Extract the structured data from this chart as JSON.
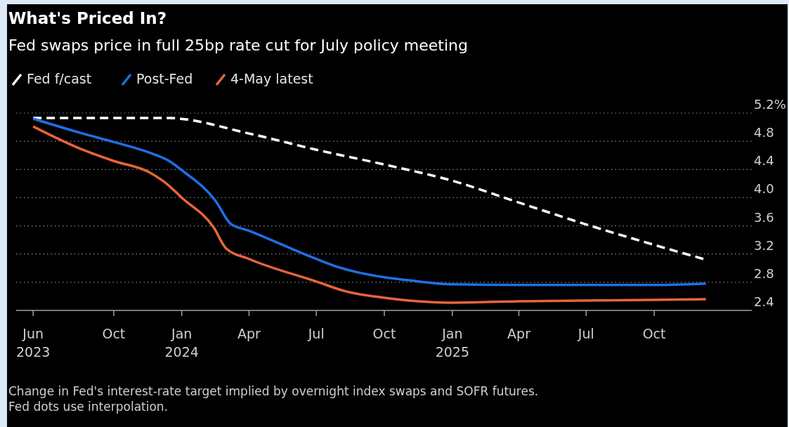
{
  "chart_data": {
    "type": "line",
    "title": "What's Priced In?",
    "subtitle": "Fed swaps price in full 25bp rate cut for July policy meeting",
    "annotations": [
      "Change in Fed's interest-rate target implied by overnight index swaps and SOFR futures. Fed dots use interpolation."
    ],
    "xlim": [
      "2023-05-22",
      "2026-02-10"
    ],
    "xticks": [
      {
        "value": "2023-06-14",
        "label": "Jun\n2023"
      },
      {
        "value": "2023-10-01",
        "label": "Oct"
      },
      {
        "value": "2024-01-01",
        "label": "Jan\n2024"
      },
      {
        "value": "2024-04-01",
        "label": "Apr"
      },
      {
        "value": "2024-07-01",
        "label": "Jul"
      },
      {
        "value": "2024-10-01",
        "label": "Oct"
      },
      {
        "value": "2025-01-01",
        "label": "Jan\n2025"
      },
      {
        "value": "2025-04-01",
        "label": "Apr"
      },
      {
        "value": "2025-07-01",
        "label": "Jul"
      },
      {
        "value": "2025-10-01",
        "label": "Oct"
      }
    ],
    "ylim": [
      2.4,
      5.2
    ],
    "yticks": [
      2.4,
      2.8,
      3.2,
      3.6,
      {
        "value": 4.0,
        "label": "4.0"
      },
      4.4,
      4.8,
      {
        "value": 5.2,
        "label": "5.2%"
      }
    ],
    "grid": "y",
    "legend": "top left",
    "series": [
      {
        "name": "Fed f/cast",
        "color": "#ffffff",
        "line_style": "dashed",
        "x": [
          "2023-06-14",
          "2023-12-13",
          "2024-04-01",
          "2024-07-01",
          "2024-10-01",
          "2025-01-01",
          "2025-04-01",
          "2025-07-01",
          "2025-10-01",
          "2025-12-10"
        ],
        "values": [
          5.13,
          5.13,
          4.91,
          4.68,
          4.47,
          4.24,
          3.93,
          3.62,
          3.33,
          3.12
        ]
      },
      {
        "name": "Post-Fed",
        "color": "#1f6fe6",
        "line_style": "solid",
        "x": [
          "2023-06-14",
          "2023-08-20",
          "2023-10-01",
          "2023-11-18",
          "2023-12-15",
          "2024-01-01",
          "2024-02-16",
          "2024-03-07",
          "2024-04-01",
          "2024-07-01",
          "2024-08-01",
          "2024-10-01",
          "2024-11-01",
          "2025-01-01",
          "2025-04-01",
          "2025-07-01",
          "2025-10-01",
          "2025-12-10"
        ],
        "values": [
          5.12,
          4.91,
          4.79,
          4.64,
          4.52,
          4.39,
          3.95,
          3.63,
          3.53,
          3.13,
          3.01,
          2.87,
          2.83,
          2.77,
          2.76,
          2.76,
          2.76,
          2.78
        ]
      },
      {
        "name": "4-May latest",
        "color": "#e8643a",
        "line_style": "solid",
        "x": [
          "2023-06-14",
          "2023-08-20",
          "2023-10-01",
          "2023-11-18",
          "2023-12-10",
          "2024-01-01",
          "2024-02-13",
          "2024-03-01",
          "2024-04-01",
          "2024-07-01",
          "2024-08-10",
          "2024-10-01",
          "2024-12-01",
          "2025-01-01",
          "2025-04-01",
          "2025-10-01",
          "2025-12-10"
        ],
        "values": [
          5.01,
          4.68,
          4.52,
          4.36,
          4.21,
          4.0,
          3.58,
          3.28,
          3.13,
          2.81,
          2.67,
          2.58,
          2.52,
          2.51,
          2.53,
          2.55,
          2.56
        ]
      }
    ]
  }
}
